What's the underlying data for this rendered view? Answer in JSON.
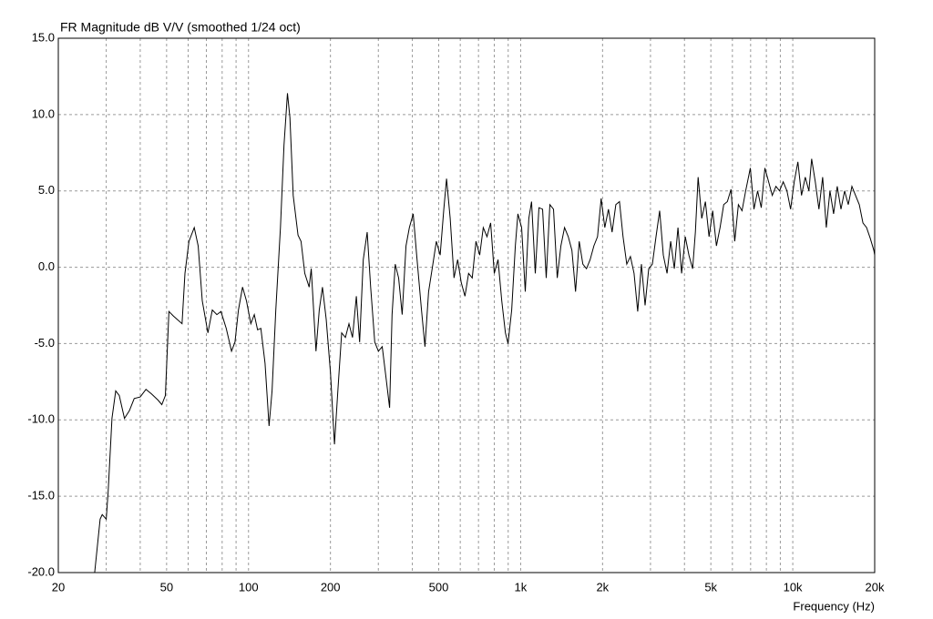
{
  "chart_data": {
    "type": "line",
    "title": "FR Magnitude dB V/V (smoothed 1/24 oct)",
    "x_label": "Frequency (Hz)",
    "xscale": "log",
    "color": "#000000",
    "grid": true,
    "xlim": [
      20,
      20000
    ],
    "xticks": [
      20,
      50,
      100,
      200,
      500,
      {
        "value": 1000,
        "label": "1k"
      },
      {
        "value": 2000,
        "label": "2k"
      },
      {
        "value": 5000,
        "label": "5k"
      },
      {
        "value": 10000,
        "label": "10k"
      },
      {
        "value": 20000,
        "label": "20k"
      }
    ],
    "xminorticks": [
      30,
      40,
      60,
      70,
      80,
      90,
      300,
      400,
      600,
      700,
      800,
      900,
      3000,
      4000,
      6000,
      7000,
      8000,
      9000
    ],
    "ylim": [
      -20,
      15
    ],
    "yticks": [
      {
        "value": -20,
        "label": "-20.0"
      },
      {
        "value": -15,
        "label": "-15.0"
      },
      {
        "value": -10,
        "label": "-10.0"
      },
      {
        "value": -5,
        "label": "-5.0"
      },
      {
        "value": 0,
        "label": "0.0"
      },
      {
        "value": 5,
        "label": "5.0"
      },
      {
        "value": 10,
        "label": "10.0"
      },
      {
        "value": 15,
        "label": "15.0"
      }
    ],
    "x": [
      27.2,
      28.5,
      29,
      30,
      30.5,
      31.5,
      32.5,
      33.5,
      35,
      36.5,
      38,
      40,
      42,
      44,
      46.5,
      48,
      49.5,
      51,
      53,
      57,
      58.4,
      60.4,
      63.2,
      65.3,
      67.6,
      70.9,
      73.6,
      76.5,
      79.2,
      82.8,
      86.6,
      89.2,
      91.8,
      95.1,
      98.3,
      102,
      105,
      108,
      111,
      115,
      119,
      122,
      126,
      131,
      135,
      139,
      142,
      146,
      152,
      156,
      161,
      167,
      170,
      177,
      182,
      187,
      193,
      200,
      207,
      213,
      220,
      227,
      234,
      241,
      249,
      256,
      264,
      273,
      281,
      291,
      300,
      310,
      320,
      330,
      337,
      346,
      356,
      367,
      379,
      390,
      403,
      415,
      432,
      445,
      459,
      476,
      490,
      506,
      522,
      534,
      551,
      569,
      587,
      605,
      624,
      644,
      664,
      685,
      707,
      729,
      752,
      776,
      800,
      826,
      852,
      879,
      899,
      927,
      956,
      977,
      1008,
      1040,
      1072,
      1097,
      1132,
      1167,
      1204,
      1242,
      1281,
      1321,
      1363,
      1406,
      1450,
      1496,
      1543,
      1591,
      1641,
      1693,
      1746,
      1801,
      1858,
      1916,
      1976,
      2038,
      2102,
      2168,
      2237,
      2307,
      2379,
      2454,
      2532,
      2611,
      2693,
      2778,
      2865,
      2955,
      3048,
      3144,
      3243,
      3345,
      3450,
      3558,
      3670,
      3786,
      3905,
      4027,
      4154,
      4285,
      4385,
      4488,
      4629,
      4775,
      4925,
      5080,
      5240,
      5405,
      5575,
      5750,
      5931,
      6118,
      6311,
      6509,
      6714,
      6980,
      7200,
      7427,
      7660,
      7902,
      8150,
      8407,
      8671,
      8944,
      9226,
      9516,
      9816,
      10125,
      10443,
      10772,
      11111,
      11461,
      11730,
      12100,
      12481,
      12873,
      13279,
      13697,
      14128,
      14573,
      15032,
      15505,
      15993,
      16496,
      17016,
      17551,
      18104,
      18674,
      19262,
      19868,
      20000
    ],
    "values": [
      -20,
      -16.5,
      -16.2,
      -16.5,
      -14.7,
      -9.9,
      -8.1,
      -8.4,
      -9.9,
      -9.4,
      -8.6,
      -8.5,
      -8.0,
      -8.3,
      -8.7,
      -9.0,
      -8.4,
      -2.9,
      -3.2,
      -3.7,
      -0.4,
      1.7,
      2.6,
      1.4,
      -2.2,
      -4.3,
      -2.8,
      -3.1,
      -2.9,
      -4.0,
      -5.5,
      -4.9,
      -2.8,
      -1.3,
      -2.2,
      -3.7,
      -3.1,
      -4.1,
      -4.0,
      -6.3,
      -10.4,
      -8.1,
      -2.8,
      2.6,
      8.0,
      11.4,
      9.8,
      4.7,
      2.1,
      1.7,
      -0.4,
      -1.3,
      -0.1,
      -5.5,
      -2.8,
      -1.3,
      -3.4,
      -6.9,
      -11.6,
      -8.1,
      -4.3,
      -4.6,
      -3.7,
      -4.6,
      -1.9,
      -4.9,
      0.5,
      2.3,
      -1.3,
      -4.9,
      -5.5,
      -5.2,
      -7.2,
      -9.2,
      -3.1,
      0.2,
      -0.7,
      -3.1,
      1.4,
      2.6,
      3.5,
      0.8,
      -2.8,
      -5.2,
      -1.6,
      0.2,
      1.7,
      0.8,
      3.8,
      5.8,
      3.2,
      -0.7,
      0.5,
      -1.0,
      -1.9,
      -0.4,
      -0.7,
      1.7,
      0.8,
      2.6,
      2.0,
      2.9,
      -0.4,
      0.5,
      -2.2,
      -4.3,
      -5.0,
      -2.8,
      1.4,
      3.5,
      2.6,
      -1.6,
      3.2,
      4.3,
      -0.4,
      3.9,
      3.8,
      -0.7,
      4.1,
      3.8,
      -0.7,
      1.4,
      2.6,
      2.0,
      1.1,
      -1.6,
      1.7,
      0.2,
      -0.1,
      0.5,
      1.4,
      2.0,
      4.5,
      2.6,
      3.8,
      2.3,
      4.1,
      4.3,
      2.0,
      0.2,
      0.7,
      -0.4,
      -2.9,
      0.2,
      -2.5,
      -0.1,
      0.2,
      2.0,
      3.7,
      0.8,
      -0.4,
      1.7,
      -0.1,
      2.6,
      -0.4,
      2.0,
      0.8,
      -0.1,
      2.3,
      5.9,
      3.2,
      4.3,
      2.0,
      3.7,
      1.4,
      2.6,
      4.1,
      4.3,
      5.1,
      1.7,
      4.1,
      3.7,
      5.0,
      6.5,
      3.8,
      5.0,
      3.9,
      6.5,
      5.6,
      4.7,
      5.3,
      5.0,
      5.6,
      5.0,
      3.8,
      5.6,
      6.9,
      4.7,
      5.9,
      5.0,
      7.1,
      5.6,
      3.8,
      5.9,
      2.6,
      5.0,
      3.5,
      5.3,
      3.8,
      5.0,
      4.1,
      5.3,
      4.7,
      4.1,
      2.9,
      2.6,
      1.9,
      1.1,
      0.8
    ]
  }
}
